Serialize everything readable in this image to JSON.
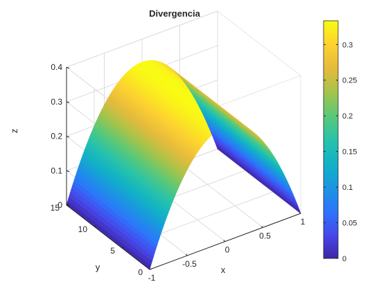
{
  "chart_data": {
    "type": "surface",
    "title": "Divergencia",
    "xlabel": "x",
    "ylabel": "y",
    "zlabel": "z",
    "xlim": [
      -1,
      1
    ],
    "ylim": [
      0,
      15
    ],
    "zlim": [
      0,
      0.4
    ],
    "xticks": [
      -1,
      -0.5,
      0,
      0.5,
      1
    ],
    "xtick_labels": [
      "-1",
      "-0.5",
      "0",
      "0.5",
      "1"
    ],
    "yticks": [
      0,
      5,
      10,
      15
    ],
    "ytick_labels": [
      "0",
      "5",
      "10",
      "15"
    ],
    "zticks": [
      0,
      0.1,
      0.2,
      0.3,
      0.4
    ],
    "ztick_labels": [
      "0",
      "0.1",
      "0.2",
      "0.3",
      "0.4"
    ],
    "surface": {
      "formula": "z = (1 - x^2) / 3, constant along y",
      "x": [
        -1,
        -0.9,
        -0.8,
        -0.7,
        -0.6,
        -0.5,
        -0.4,
        -0.3,
        -0.2,
        -0.1,
        0,
        0.1,
        0.2,
        0.3,
        0.4,
        0.5,
        0.6,
        0.7,
        0.8,
        0.9,
        1
      ],
      "z": [
        0,
        0.0633,
        0.12,
        0.17,
        0.2133,
        0.25,
        0.28,
        0.3033,
        0.32,
        0.33,
        0.3333,
        0.33,
        0.32,
        0.3033,
        0.28,
        0.25,
        0.2133,
        0.17,
        0.12,
        0.0633,
        0
      ],
      "y_range": [
        0,
        15
      ]
    },
    "grid": true,
    "colormap": "parula",
    "colorbar": {
      "position": "right",
      "limits": [
        0,
        0.3333
      ],
      "ticks": [
        0,
        0.05,
        0.1,
        0.15,
        0.2,
        0.25,
        0.3
      ],
      "tick_labels": [
        "0",
        "0.05",
        "0.1",
        "0.15",
        "0.2",
        "0.25",
        "0.3"
      ]
    }
  }
}
